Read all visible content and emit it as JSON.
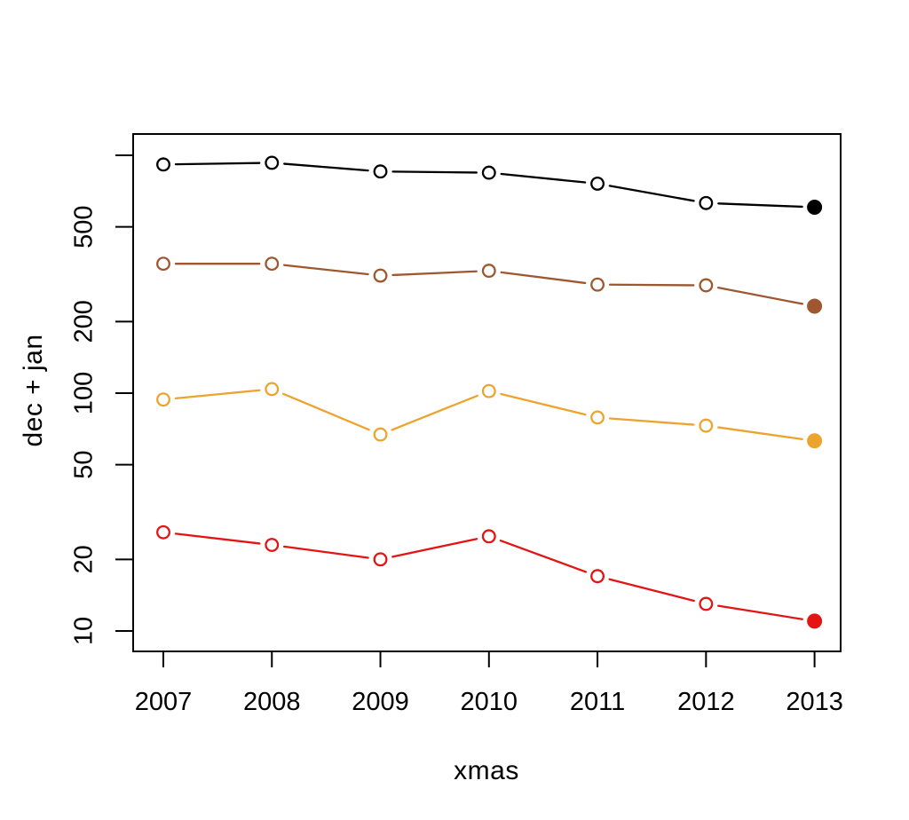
{
  "figure": {
    "background": "#ffffff",
    "text_color": "#000000"
  },
  "chart_data": {
    "type": "line",
    "title": "",
    "xlabel": "xmas",
    "ylabel": "dec + jan",
    "x": [
      2007,
      2008,
      2009,
      2010,
      2011,
      2012,
      2013
    ],
    "x_tick_labels": [
      "2007",
      "2008",
      "2009",
      "2010",
      "2011",
      "2012",
      "2013"
    ],
    "y_scale": "log10",
    "ylim": [
      10,
      1000
    ],
    "xlim": [
      2007,
      2013
    ],
    "y_ticks": [
      {
        "value": 1000,
        "label": ""
      },
      {
        "value": 500,
        "label": "500"
      },
      {
        "value": 200,
        "label": "200"
      },
      {
        "value": 100,
        "label": "100"
      },
      {
        "value": 50,
        "label": "50"
      },
      {
        "value": 20,
        "label": "20"
      },
      {
        "value": 10,
        "label": "10"
      }
    ],
    "grid": "off",
    "legend": "none",
    "marker": "open-circle",
    "last_point_filled": true,
    "series": [
      {
        "name": "black",
        "color": "#000000",
        "values": [
          915,
          930,
          855,
          845,
          760,
          630,
          605
        ]
      },
      {
        "name": "brown",
        "color": "#9e572f",
        "values": [
          350,
          350,
          312,
          327,
          286,
          284,
          232
        ]
      },
      {
        "name": "orange",
        "color": "#eca42e",
        "values": [
          94,
          104,
          67,
          102,
          79,
          73,
          63
        ]
      },
      {
        "name": "red",
        "color": "#e41414",
        "values": [
          26,
          23,
          20,
          25,
          17,
          13,
          11
        ]
      }
    ]
  }
}
